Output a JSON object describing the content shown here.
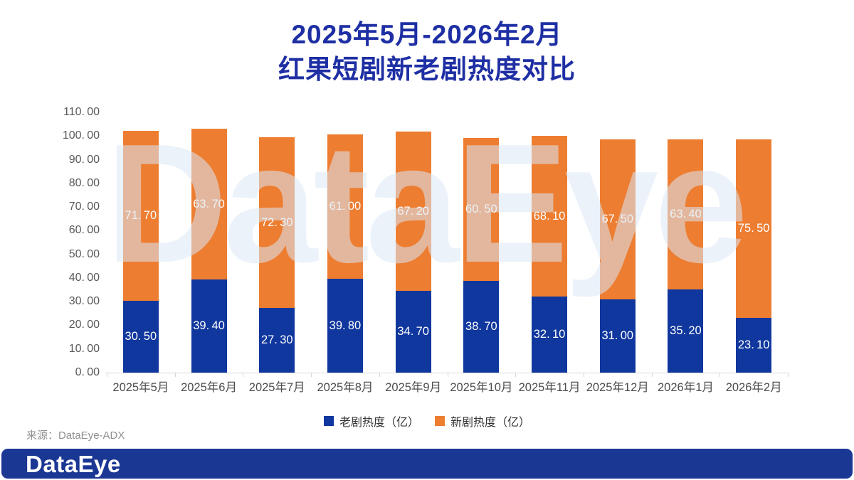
{
  "title": {
    "line1": "2025年5月-2026年2月",
    "line2": "红果短剧新老剧热度对比"
  },
  "chart_data": {
    "type": "bar",
    "stacked": true,
    "categories": [
      "2025年5月",
      "2025年6月",
      "2025年7月",
      "2025年8月",
      "2025年9月",
      "2025年10月",
      "2025年11月",
      "2025年12月",
      "2026年1月",
      "2026年2月"
    ],
    "series": [
      {
        "name": "老剧热度（亿）",
        "color": "#10379E",
        "values": [
          30.5,
          39.4,
          27.3,
          39.8,
          34.7,
          38.7,
          32.1,
          31.0,
          35.2,
          23.1
        ]
      },
      {
        "name": "新剧热度（亿）",
        "color": "#ED7D31",
        "values": [
          71.7,
          63.7,
          72.3,
          61.0,
          67.2,
          60.5,
          68.1,
          67.5,
          63.4,
          75.5
        ]
      }
    ],
    "ylim": [
      0,
      110
    ],
    "ytick_step": 10,
    "value_label_decimals": 2,
    "grid": false,
    "legend_position": "bottom"
  },
  "watermark_text": "DataEye",
  "source_note": "来源：DataEye-ADX",
  "footer": {
    "logo_text": "DataEye"
  },
  "colors": {
    "title_blue": "#1E2FA4",
    "old_drama_blue": "#10379E",
    "new_drama_orange": "#ED7D31",
    "axis_gray": "#D6D6D6",
    "tick_text_gray": "#595959",
    "footer_navy": "#1B3794",
    "watermark_blue": "#DBE8F6"
  }
}
